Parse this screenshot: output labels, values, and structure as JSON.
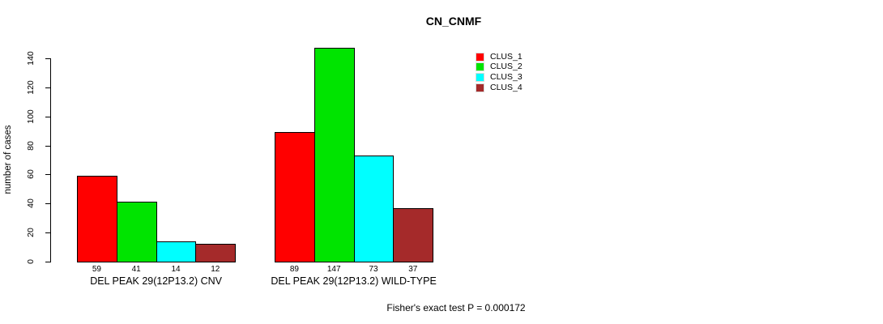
{
  "title": "CN_CNMF",
  "footer": "Fisher's exact test P = 0.000172",
  "chart_data": {
    "type": "bar",
    "title": "CN_CNMF",
    "xlabel": "",
    "ylabel": "number of cases",
    "ylim": [
      0,
      140
    ],
    "yticks": [
      0,
      20,
      40,
      60,
      80,
      100,
      120,
      140
    ],
    "grid": false,
    "bar_value_labels": true,
    "legend_position": "top-right",
    "categories": [
      "DEL PEAK 29(12P13.2) CNV",
      "DEL PEAK 29(12P13.2) WILD-TYPE"
    ],
    "series": [
      {
        "name": "CLUS_1",
        "color": "#ff0000",
        "values": [
          59,
          89
        ]
      },
      {
        "name": "CLUS_2",
        "color": "#00e400",
        "values": [
          41,
          147
        ]
      },
      {
        "name": "CLUS_3",
        "color": "#00ffff",
        "values": [
          14,
          73
        ]
      },
      {
        "name": "CLUS_4",
        "color": "#a52a2a",
        "values": [
          12,
          37
        ]
      }
    ],
    "annotation": "Fisher's exact test P = 0.000172"
  }
}
